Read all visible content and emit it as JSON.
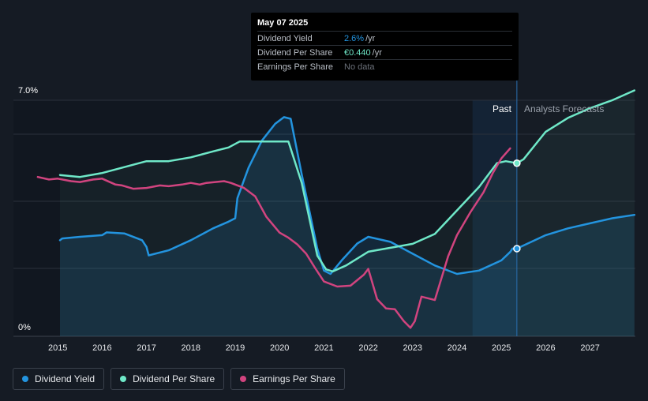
{
  "tooltip": {
    "date": "May 07 2025",
    "rows": [
      {
        "label": "Dividend Yield",
        "value": "2.6%",
        "unit": "/yr",
        "color": "#2394df"
      },
      {
        "label": "Dividend Per Share",
        "value": "€0.440",
        "unit": "/yr",
        "color": "#6fe8c8"
      },
      {
        "label": "Earnings Per Share",
        "value": "No data",
        "unit": "",
        "color": "#6b7079"
      }
    ]
  },
  "zones": {
    "past": "Past",
    "forecast": "Analysts Forecasts"
  },
  "legend": [
    {
      "label": "Dividend Yield",
      "color": "#2394df"
    },
    {
      "label": "Dividend Per Share",
      "color": "#6fe8c8"
    },
    {
      "label": "Earnings Per Share",
      "color": "#d1447f"
    }
  ],
  "chart_data": {
    "type": "line",
    "ytick_labels": [
      "7.0%",
      "0%"
    ],
    "xtick_labels": [
      "2015",
      "2016",
      "2017",
      "2018",
      "2019",
      "2020",
      "2021",
      "2022",
      "2023",
      "2024",
      "2025",
      "2026",
      "2027"
    ],
    "xlim": [
      2014.0,
      2028.0
    ],
    "yield_ylim": [
      0,
      7.0
    ],
    "dps_ylim": [
      0,
      0.6
    ],
    "eps_ylim": [
      -0.3,
      1.1
    ],
    "today": 2025.35,
    "forecast_band_start": 2024.35,
    "series": [
      {
        "name": "Dividend Yield",
        "color": "#2394df",
        "axis": "yield",
        "fill": true,
        "marker_at": [
          2025.35,
          2.6
        ],
        "x": [
          2015.05,
          2015.1,
          2015.5,
          2016.0,
          2016.1,
          2016.5,
          2016.9,
          2017.0,
          2017.05,
          2017.5,
          2018.0,
          2018.5,
          2018.85,
          2019.0,
          2019.05,
          2019.3,
          2019.6,
          2019.9,
          2020.1,
          2020.25,
          2020.5,
          2020.85,
          2021.0,
          2021.15,
          2021.4,
          2021.75,
          2022.0,
          2022.5,
          2023.0,
          2023.5,
          2024.0,
          2024.5,
          2025.0,
          2025.2,
          2025.25,
          2025.35,
          2026.0,
          2026.5,
          2027.0,
          2027.5,
          2028.0
        ],
        "y": [
          2.85,
          2.9,
          2.95,
          3.0,
          3.08,
          3.05,
          2.85,
          2.65,
          2.4,
          2.55,
          2.85,
          3.2,
          3.4,
          3.5,
          4.1,
          5.0,
          5.8,
          6.3,
          6.5,
          6.45,
          4.8,
          2.6,
          1.95,
          1.85,
          2.25,
          2.75,
          2.95,
          2.8,
          2.45,
          2.1,
          1.85,
          1.95,
          2.25,
          2.5,
          2.6,
          2.6,
          3.0,
          3.2,
          3.35,
          3.5,
          3.6
        ]
      },
      {
        "name": "Dividend Per Share",
        "color": "#6fe8c8",
        "axis": "dps",
        "fill": true,
        "marker_at": [
          2025.35,
          0.44
        ],
        "x": [
          2015.05,
          2015.5,
          2016.0,
          2016.5,
          2017.0,
          2017.5,
          2018.0,
          2018.5,
          2018.85,
          2019.1,
          2019.5,
          2020.0,
          2020.2,
          2020.5,
          2020.85,
          2021.05,
          2021.2,
          2021.5,
          2022.0,
          2022.5,
          2023.0,
          2023.5,
          2024.0,
          2024.5,
          2024.9,
          2025.1,
          2025.35,
          2025.5,
          2026.0,
          2026.5,
          2027.0,
          2027.5,
          2028.0
        ],
        "y": [
          0.41,
          0.405,
          0.415,
          0.43,
          0.445,
          0.445,
          0.455,
          0.47,
          0.48,
          0.495,
          0.495,
          0.495,
          0.495,
          0.39,
          0.205,
          0.17,
          0.165,
          0.18,
          0.215,
          0.225,
          0.235,
          0.26,
          0.32,
          0.38,
          0.44,
          0.445,
          0.44,
          0.45,
          0.52,
          0.555,
          0.58,
          0.6,
          0.625
        ]
      },
      {
        "name": "Earnings Per Share",
        "color": "#d1447f",
        "axis": "eps",
        "fill": false,
        "x": [
          2014.55,
          2014.8,
          2015.0,
          2015.3,
          2015.5,
          2015.8,
          2016.0,
          2016.3,
          2016.45,
          2016.7,
          2017.0,
          2017.3,
          2017.5,
          2017.8,
          2018.0,
          2018.2,
          2018.35,
          2018.55,
          2018.75,
          2018.9,
          2019.2,
          2019.45,
          2019.7,
          2020.0,
          2020.2,
          2020.4,
          2020.6,
          2020.8,
          2021.0,
          2021.3,
          2021.6,
          2021.9,
          2022.0,
          2022.2,
          2022.4,
          2022.6,
          2022.8,
          2022.95,
          2023.05,
          2023.2,
          2023.5,
          2023.8,
          2024.0,
          2024.3,
          2024.6,
          2024.8,
          2025.0,
          2025.2
        ],
        "y": [
          0.645,
          0.63,
          0.635,
          0.62,
          0.615,
          0.63,
          0.635,
          0.6,
          0.595,
          0.575,
          0.58,
          0.595,
          0.59,
          0.6,
          0.61,
          0.6,
          0.61,
          0.615,
          0.62,
          0.61,
          0.58,
          0.53,
          0.41,
          0.315,
          0.285,
          0.245,
          0.19,
          0.105,
          0.025,
          -0.005,
          0.0,
          0.065,
          0.1,
          -0.08,
          -0.135,
          -0.14,
          -0.21,
          -0.25,
          -0.21,
          -0.065,
          -0.085,
          0.175,
          0.3,
          0.435,
          0.555,
          0.665,
          0.755,
          0.815
        ]
      }
    ]
  }
}
